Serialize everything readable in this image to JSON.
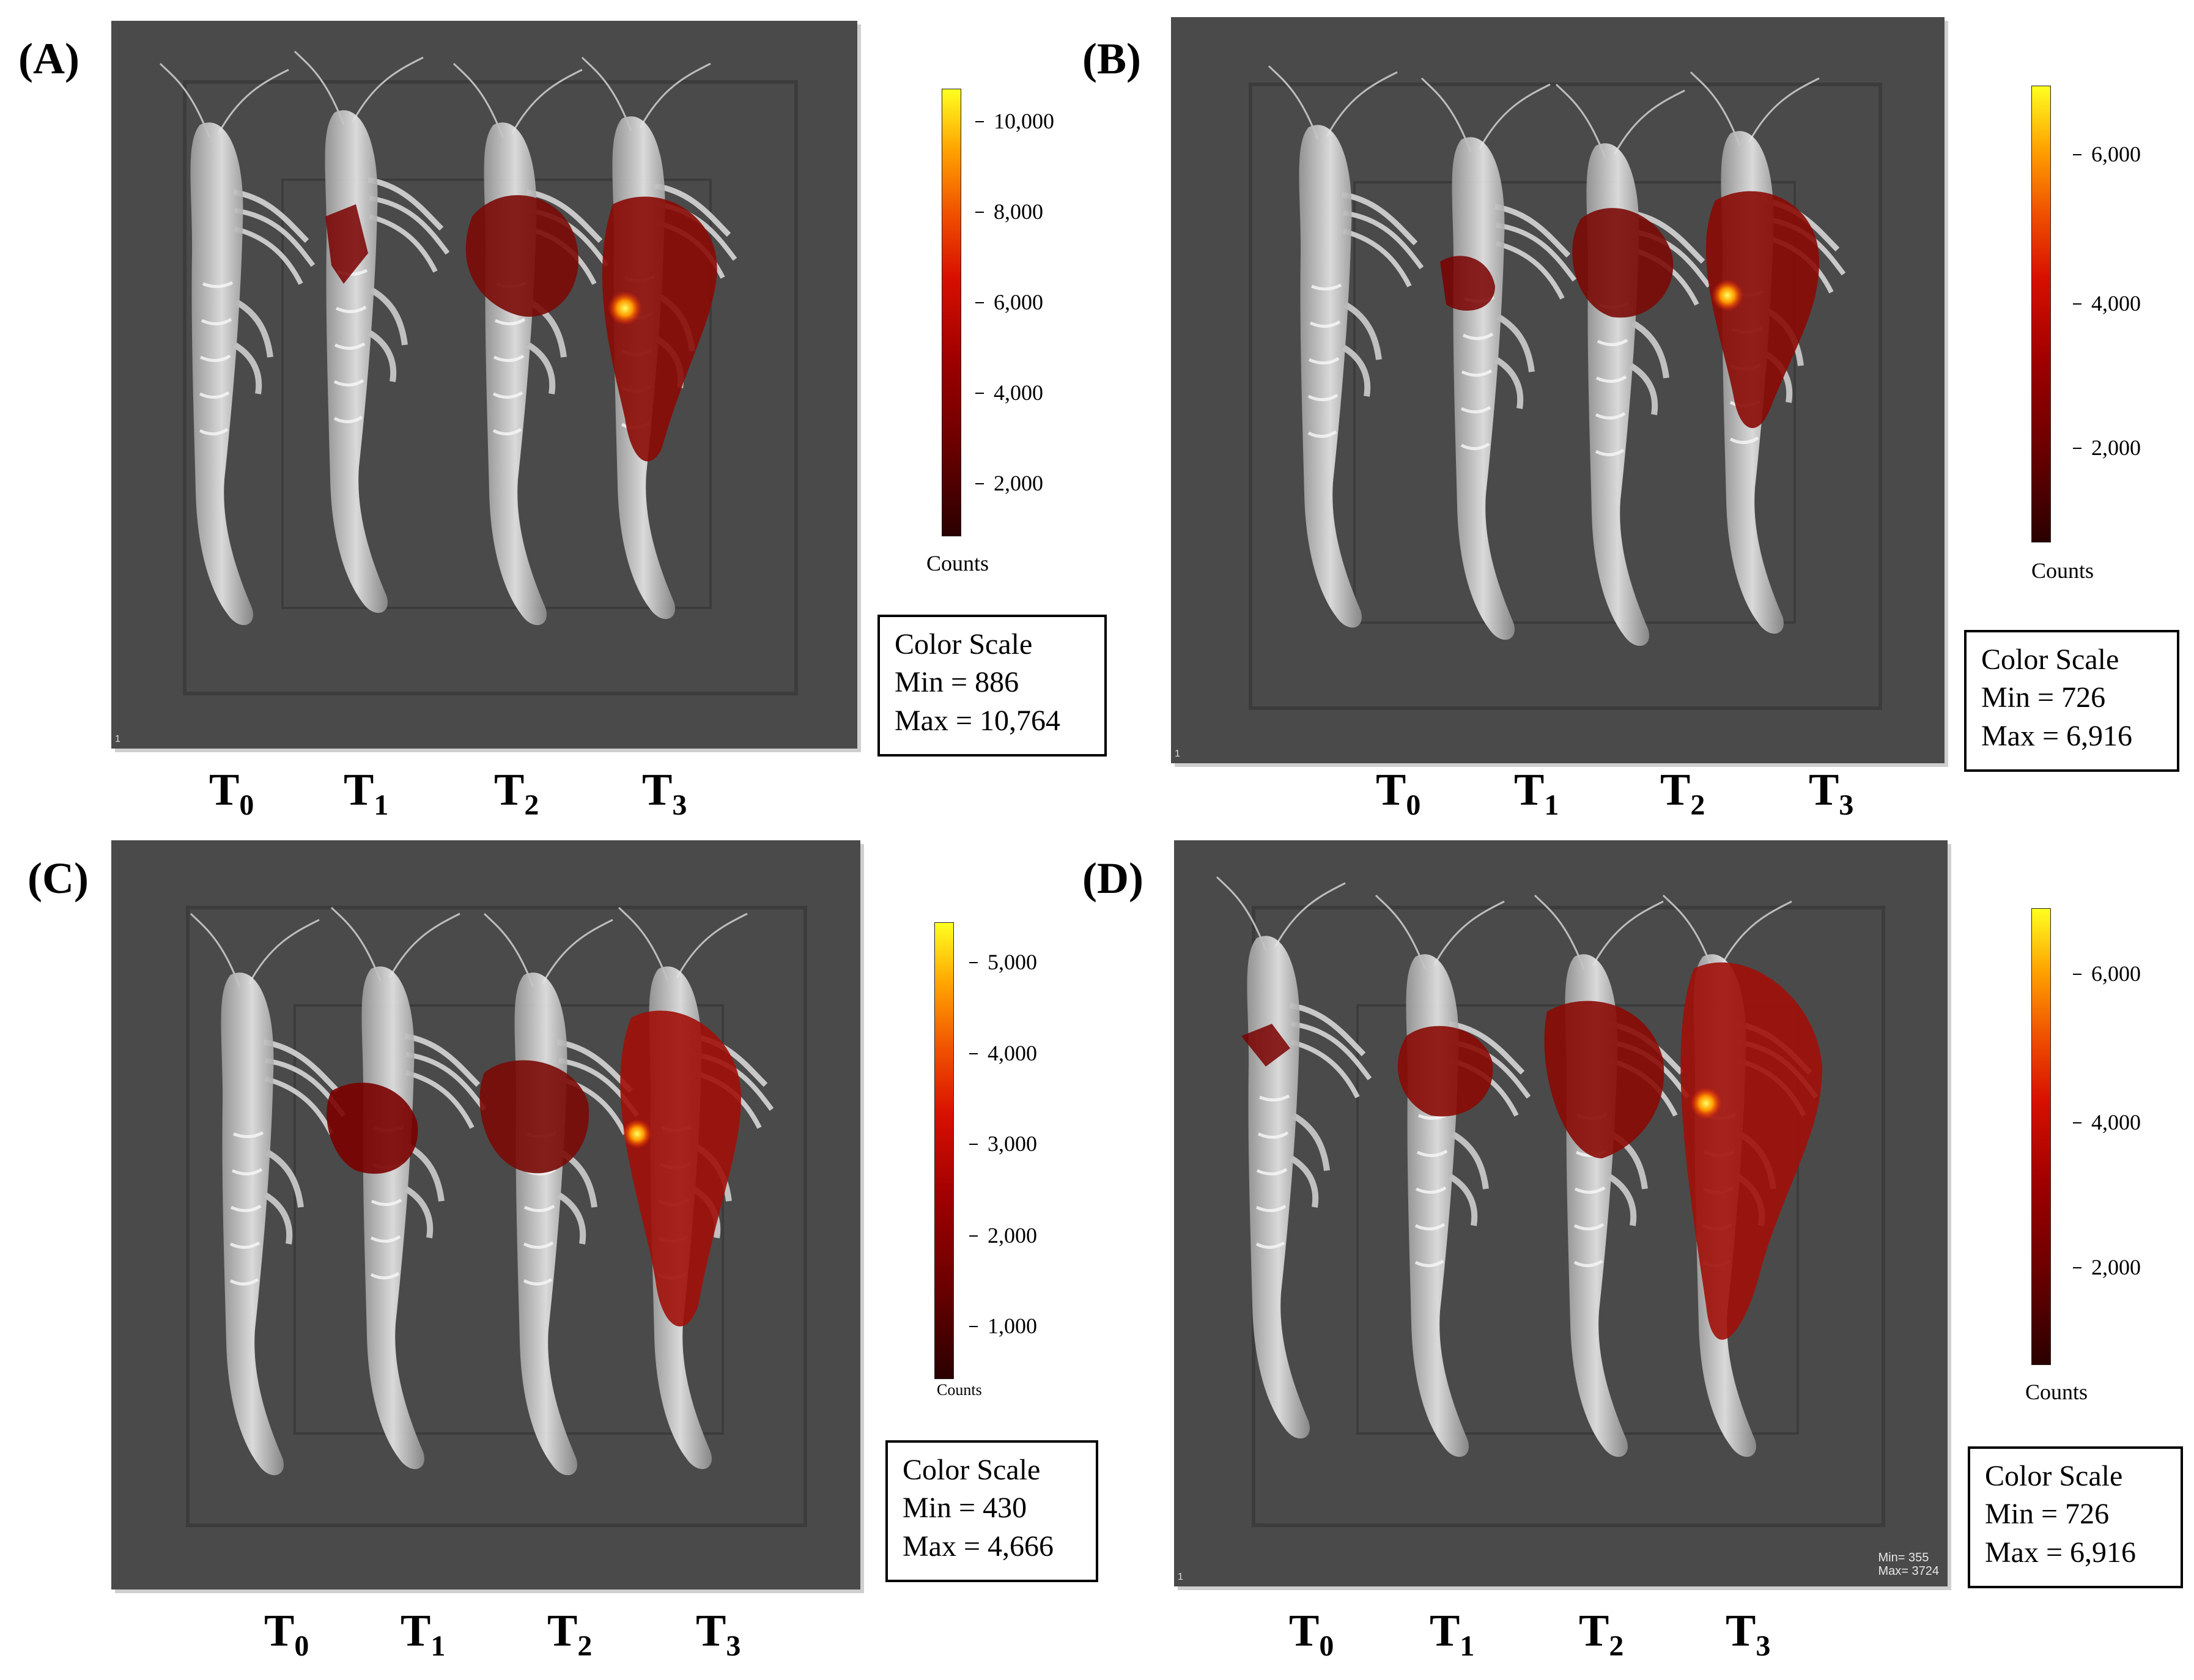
{
  "panels": [
    {
      "label": "(A)",
      "scale_title": "Color Scale",
      "min_text": "Min = 886",
      "max_text": "Max = 10,764",
      "colorbar_ticks": [
        "10,000",
        "8,000",
        "6,000",
        "4,000",
        "2,000"
      ],
      "colorbar_unit": "Counts",
      "corner_mark": "1",
      "groups": [
        {
          "main": "T",
          "sub": "0"
        },
        {
          "main": "T",
          "sub": "1"
        },
        {
          "main": "T",
          "sub": "2"
        },
        {
          "main": "T",
          "sub": "3"
        }
      ]
    },
    {
      "label": "(B)",
      "scale_title": "Color Scale",
      "min_text": "Min = 726",
      "max_text": "Max = 6,916",
      "colorbar_ticks": [
        "6,000",
        "4,000",
        "2,000"
      ],
      "colorbar_unit": "Counts",
      "corner_mark": "1",
      "groups": [
        {
          "main": "T",
          "sub": "0"
        },
        {
          "main": "T",
          "sub": "1"
        },
        {
          "main": "T",
          "sub": "2"
        },
        {
          "main": "T",
          "sub": "3"
        }
      ]
    },
    {
      "label": "(C)",
      "scale_title": "Color Scale",
      "min_text": "Min = 430",
      "max_text": "Max = 4,666",
      "colorbar_ticks": [
        "5,000",
        "4,000",
        "3,000",
        "2,000",
        "1,000"
      ],
      "colorbar_unit": "Counts",
      "corner_mark": "",
      "groups": [
        {
          "main": "T",
          "sub": "0"
        },
        {
          "main": "T",
          "sub": "1"
        },
        {
          "main": "T",
          "sub": "2"
        },
        {
          "main": "T",
          "sub": "3"
        }
      ]
    },
    {
      "label": "(D)",
      "scale_title": "Color Scale",
      "min_text": "Min = 726",
      "max_text": "Max = 6,916",
      "colorbar_ticks": [
        "6,000",
        "4,000",
        "2,000"
      ],
      "colorbar_unit": "Counts",
      "corner_mark": "1",
      "overlay_min": "Min= 355",
      "overlay_max": "Max= 3724",
      "groups": [
        {
          "main": "T",
          "sub": "0"
        },
        {
          "main": "T",
          "sub": "1"
        },
        {
          "main": "T",
          "sub": "2"
        },
        {
          "main": "T",
          "sub": "3"
        }
      ]
    }
  ],
  "colors": {
    "background_photo": "#4a4a4a",
    "shrimp": "#d8d8d8",
    "signal_low": "#7a0000",
    "signal_mid": "#c01000",
    "signal_high": "#ffd000"
  }
}
